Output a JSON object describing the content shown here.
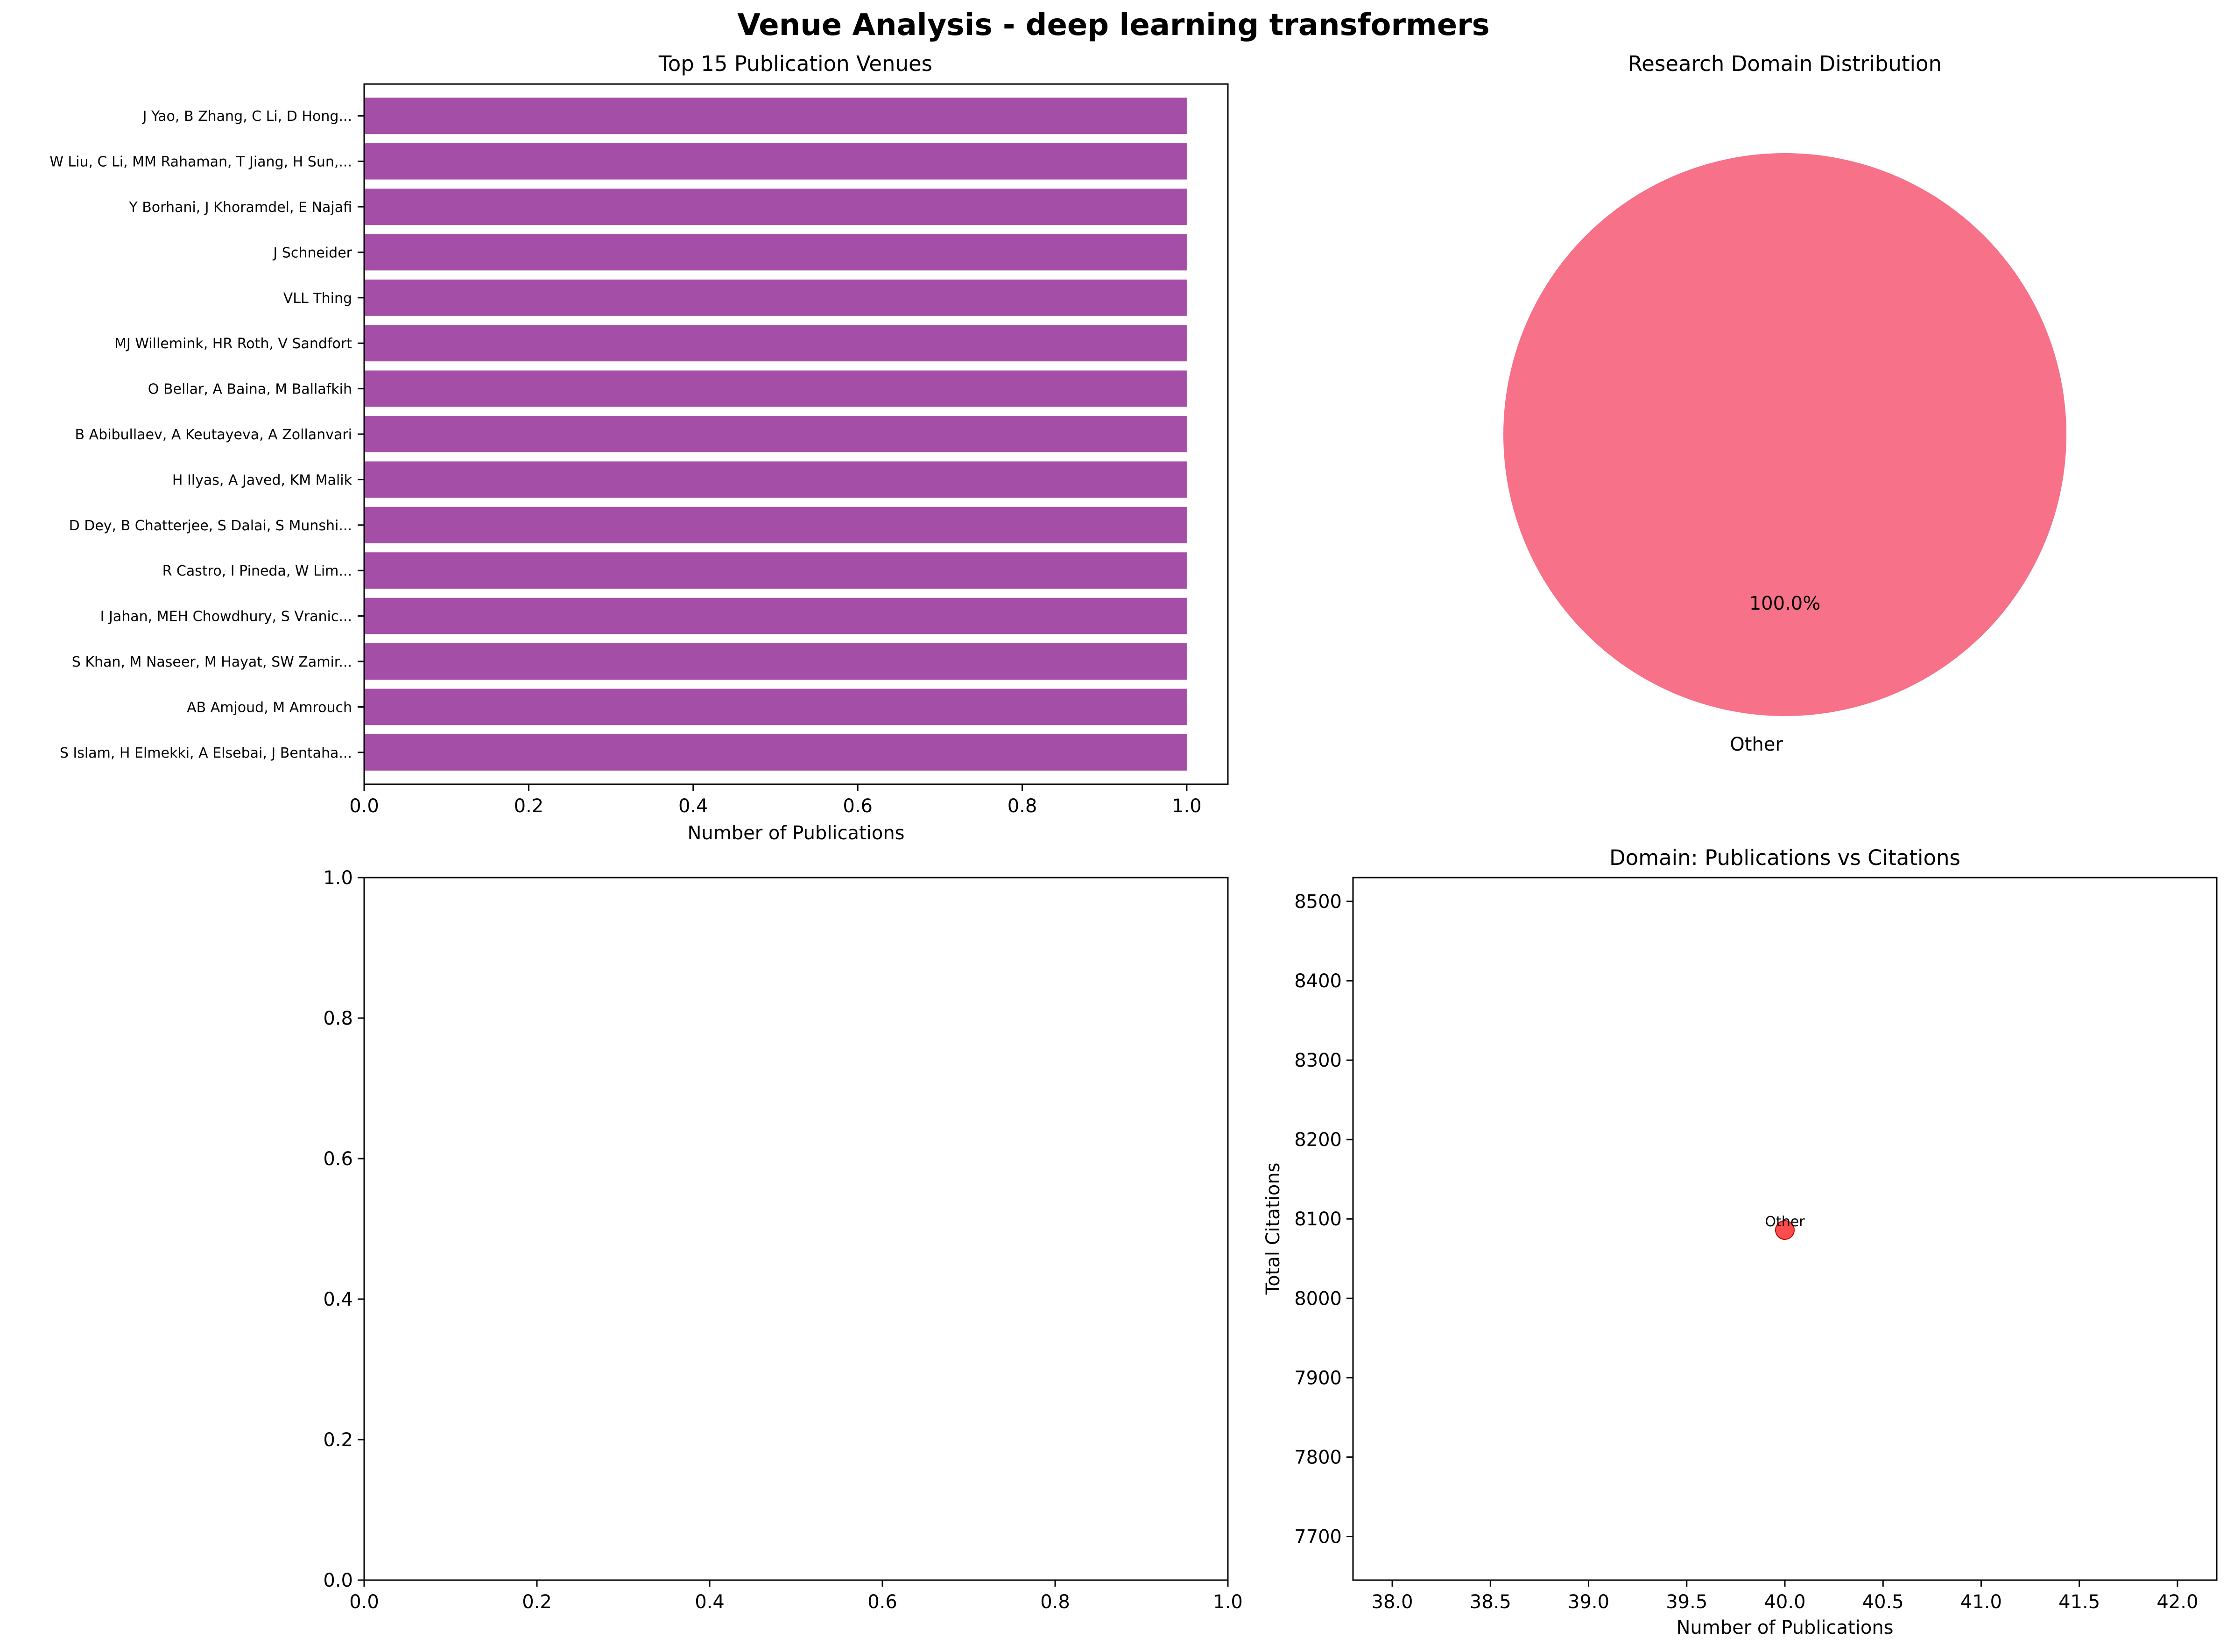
{
  "figure": {
    "suptitle": "Venue Analysis - deep learning transformers"
  },
  "chart_data": [
    {
      "type": "bar",
      "orientation": "horizontal",
      "title": "Top 15 Publication Venues",
      "xlabel": "Number of Publications",
      "ylabel": "",
      "color": "#a44ea8",
      "categories": [
        "S Islam, H Elmekki, A Elsebai, J Bentaha...",
        "AB Amjoud, M Amrouch",
        "S Khan, M Naseer, M Hayat, SW Zamir...",
        "I Jahan, MEH Chowdhury, S Vranic...",
        "R Castro, I Pineda, W Lim...",
        "D Dey, B Chatterjee, S Dalai, S Munshi...",
        "H Ilyas, A Javed, KM Malik",
        "B Abibullaev, A Keutayeva, A Zollanvari",
        "O Bellar, A Baina, M Ballafkih",
        "MJ Willemink, HR Roth, V Sandfort",
        "VLL Thing",
        "J Schneider",
        "Y Borhani, J Khoramdel, E Najafi",
        "W Liu, C Li, MM Rahaman, T Jiang, H Sun,...",
        "J Yao, B Zhang, C Li, D Hong..."
      ],
      "values": [
        1,
        1,
        1,
        1,
        1,
        1,
        1,
        1,
        1,
        1,
        1,
        1,
        1,
        1,
        1
      ],
      "xlim": [
        0,
        1.05
      ],
      "xticks": [
        "0.0",
        "0.2",
        "0.4",
        "0.6",
        "0.8",
        "1.0"
      ]
    },
    {
      "type": "pie",
      "title": "Research Domain Distribution",
      "labels": [
        "Other"
      ],
      "values": [
        100.0
      ],
      "autopct": [
        "100.0%"
      ],
      "colors": [
        "#f77189"
      ]
    },
    {
      "type": "empty",
      "xlim": [
        0,
        1
      ],
      "ylim": [
        0,
        1
      ],
      "xticks": [
        "0.0",
        "0.2",
        "0.4",
        "0.6",
        "0.8",
        "1.0"
      ],
      "yticks": [
        "0.0",
        "0.2",
        "0.4",
        "0.6",
        "0.8",
        "1.0"
      ]
    },
    {
      "type": "scatter",
      "title": "Domain: Publications vs Citations",
      "xlabel": "Number of Publications",
      "ylabel": "Total Citations",
      "points": [
        {
          "x": 40,
          "y": 8086,
          "label": "Other"
        }
      ],
      "color": "#ff0000",
      "xlim": [
        37.8,
        42.2
      ],
      "ylim": [
        7645,
        8530
      ],
      "xticks": [
        "38.0",
        "38.5",
        "39.0",
        "39.5",
        "40.0",
        "40.5",
        "41.0",
        "41.5",
        "42.0"
      ],
      "yticks": [
        "7700",
        "7800",
        "7900",
        "8000",
        "8100",
        "8200",
        "8300",
        "8400",
        "8500"
      ]
    }
  ]
}
